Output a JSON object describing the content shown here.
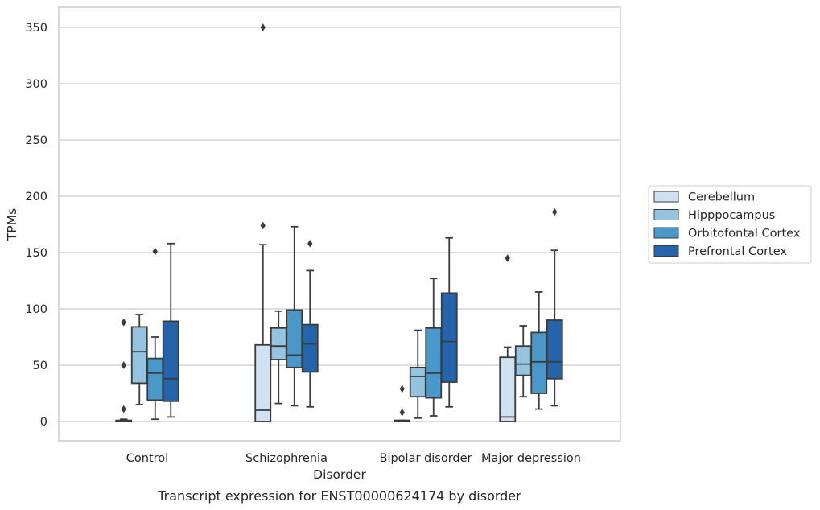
{
  "chart_data": {
    "type": "box",
    "title": "",
    "caption": "Transcript expression for ENST00000624174 by disorder",
    "xlabel": "Disorder",
    "ylabel": "TPMs",
    "ylim": [
      -17,
      367
    ],
    "yticks": [
      0,
      50,
      100,
      150,
      200,
      250,
      300,
      350
    ],
    "grid": "horizontal",
    "legend_position": "right",
    "categories": [
      "Control",
      "Schizophrenia",
      "Bipolar disorder",
      "Major depression"
    ],
    "series": [
      {
        "name": "Cerebellum",
        "color": "#d0e1f2",
        "boxes": [
          {
            "whislo": 0,
            "q1": 0,
            "med": 0.5,
            "q3": 1,
            "whishi": 2,
            "fliers": [
              11,
              50,
              88
            ]
          },
          {
            "whislo": 0,
            "q1": 0,
            "med": 10,
            "q3": 68,
            "whishi": 157,
            "fliers": [
              174,
              350
            ]
          },
          {
            "whislo": 0,
            "q1": 0,
            "med": 0.5,
            "q3": 1,
            "whishi": 1,
            "fliers": [
              8,
              29
            ]
          },
          {
            "whislo": 0,
            "q1": 0,
            "med": 4,
            "q3": 57,
            "whishi": 66,
            "fliers": [
              145
            ]
          }
        ]
      },
      {
        "name": "Hipppocampus",
        "color": "#94c4df",
        "boxes": [
          {
            "whislo": 15,
            "q1": 34,
            "med": 62,
            "q3": 84,
            "whishi": 95,
            "fliers": []
          },
          {
            "whislo": 16,
            "q1": 55,
            "med": 67,
            "q3": 83,
            "whishi": 98,
            "fliers": []
          },
          {
            "whislo": 3,
            "q1": 22,
            "med": 40,
            "q3": 48,
            "whishi": 81,
            "fliers": []
          },
          {
            "whislo": 22,
            "q1": 41,
            "med": 51,
            "q3": 67,
            "whishi": 85,
            "fliers": []
          }
        ]
      },
      {
        "name": "Orbitofontal Cortex",
        "color": "#4a98c9",
        "boxes": [
          {
            "whislo": 2,
            "q1": 19,
            "med": 43,
            "q3": 56,
            "whishi": 75,
            "fliers": [
              151
            ]
          },
          {
            "whislo": 14,
            "q1": 48,
            "med": 59,
            "q3": 99,
            "whishi": 173,
            "fliers": []
          },
          {
            "whislo": 5,
            "q1": 21,
            "med": 43,
            "q3": 83,
            "whishi": 127,
            "fliers": []
          },
          {
            "whislo": 11,
            "q1": 25,
            "med": 53,
            "q3": 79,
            "whishi": 115,
            "fliers": []
          }
        ]
      },
      {
        "name": "Prefrontal Cortex",
        "color": "#2364aa",
        "boxes": [
          {
            "whislo": 4,
            "q1": 18,
            "med": 38,
            "q3": 89,
            "whishi": 158,
            "fliers": []
          },
          {
            "whislo": 13,
            "q1": 44,
            "med": 69,
            "q3": 86,
            "whishi": 134,
            "fliers": [
              158
            ]
          },
          {
            "whislo": 13,
            "q1": 35,
            "med": 71,
            "q3": 114,
            "whishi": 163,
            "fliers": []
          },
          {
            "whislo": 14,
            "q1": 38,
            "med": 53,
            "q3": 90,
            "whishi": 152,
            "fliers": [
              186
            ]
          }
        ]
      }
    ]
  }
}
